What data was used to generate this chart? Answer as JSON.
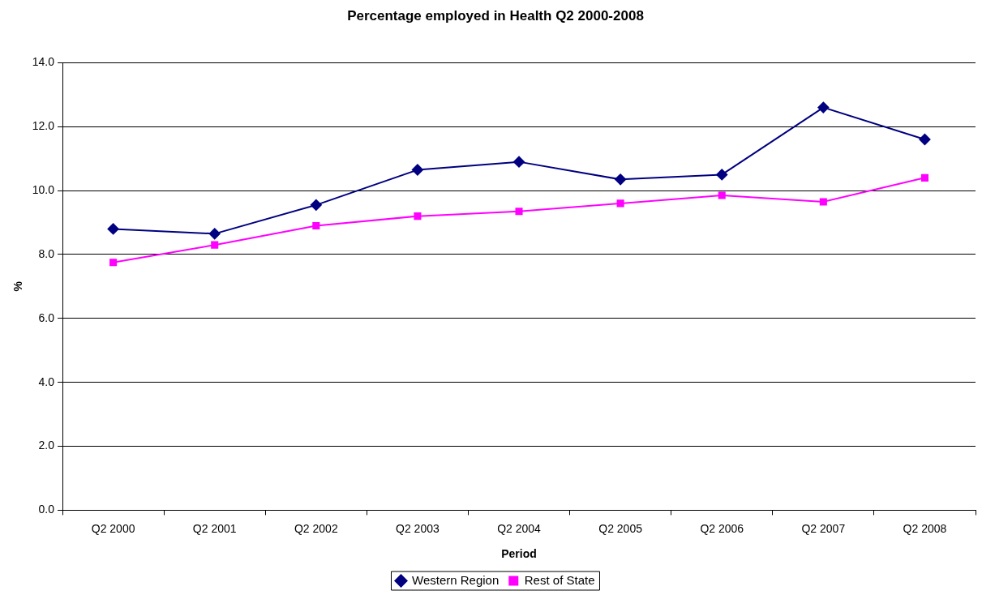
{
  "chart_data": {
    "type": "line",
    "title": "Percentage employed in Health Q2 2000-2008",
    "xlabel": "Period",
    "ylabel": "%",
    "categories": [
      "Q2 2000",
      "Q2 2001",
      "Q2 2002",
      "Q2 2003",
      "Q2 2004",
      "Q2 2005",
      "Q2 2006",
      "Q2 2007",
      "Q2 2008"
    ],
    "series": [
      {
        "name": "Western Region",
        "color": "#000080",
        "marker": "diamond",
        "values": [
          8.8,
          8.65,
          9.55,
          10.65,
          10.9,
          10.35,
          10.5,
          12.6,
          11.6
        ]
      },
      {
        "name": "Rest of State",
        "color": "#ff00ff",
        "marker": "square",
        "values": [
          7.75,
          8.3,
          8.9,
          9.2,
          9.35,
          9.6,
          9.85,
          9.65,
          10.4
        ]
      }
    ],
    "ylim": [
      0,
      14
    ],
    "yticks": [
      {
        "value": 0,
        "label": "0.0"
      },
      {
        "value": 2,
        "label": "2.0"
      },
      {
        "value": 4,
        "label": "4.0"
      },
      {
        "value": 6,
        "label": "6.0"
      },
      {
        "value": 8,
        "label": "8.0"
      },
      {
        "value": 10,
        "label": "10.0"
      },
      {
        "value": 12,
        "label": "12.0"
      },
      {
        "value": 14,
        "label": "14.0"
      }
    ],
    "grid": "y",
    "legend": "bottom",
    "line_style": "solid"
  }
}
